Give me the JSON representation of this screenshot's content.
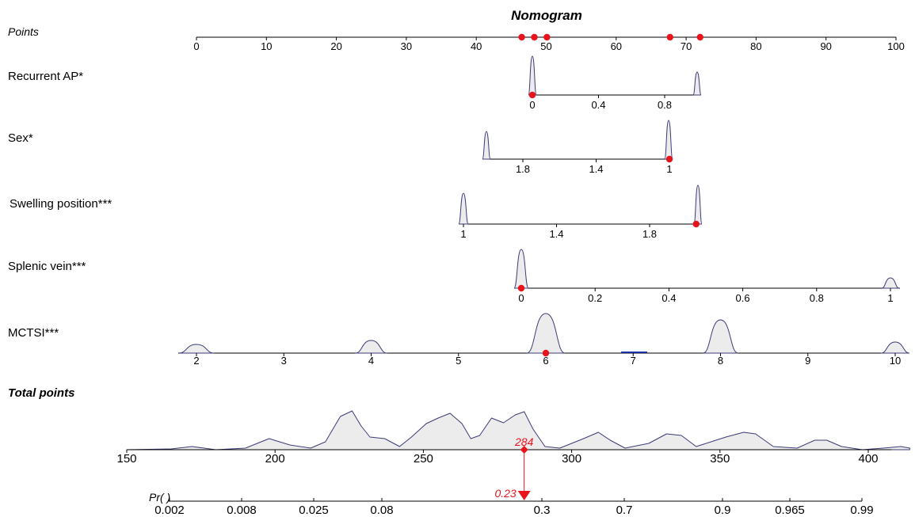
{
  "chart_data": {
    "type": "nomogram",
    "title": "Nomogram",
    "points_label": "Points",
    "points_scale": {
      "range": [
        0,
        100
      ],
      "ticks": [
        "0",
        "10",
        "20",
        "30",
        "40",
        "50",
        "60",
        "70",
        "80",
        "90",
        "100"
      ]
    },
    "points_markers": [
      46.5,
      48.3,
      50.1,
      67.7,
      72.0
    ],
    "variables": [
      {
        "label": "Recurrent AP*",
        "ticks": [
          "0",
          "0.4",
          "0.8"
        ],
        "tick_values": [
          0,
          0.4,
          0.8
        ],
        "selected": 0
      },
      {
        "label": "Sex*",
        "ticks": [
          "1.8",
          "1.4",
          "1"
        ],
        "tick_values": [
          1.8,
          1.4,
          1.0
        ],
        "selected": 1
      },
      {
        "label": "Swelling position***",
        "ticks": [
          "1",
          "1.4",
          "1.8"
        ],
        "tick_values": [
          1,
          1.4,
          1.8
        ],
        "selected": 2
      },
      {
        "label": "Splenic vein***",
        "ticks": [
          "0",
          "0.2",
          "0.4",
          "0.6",
          "0.8",
          "1"
        ],
        "tick_values": [
          0,
          0.2,
          0.4,
          0.6,
          0.8,
          1
        ],
        "selected": 0
      },
      {
        "label": "MCTSI***",
        "ticks": [
          "2",
          "3",
          "4",
          "5",
          "6",
          "7",
          "8",
          "9",
          "10"
        ],
        "tick_values": [
          2,
          3,
          4,
          5,
          6,
          7,
          8,
          9,
          10
        ],
        "selected": 6
      }
    ],
    "total_points": {
      "label": "Total points",
      "ticks": [
        "150",
        "200",
        "250",
        "300",
        "350",
        "400"
      ],
      "tick_values": [
        150,
        200,
        250,
        300,
        350,
        400
      ],
      "selected": 284,
      "selected_label": "284"
    },
    "probability": {
      "label": "Pr( )",
      "ticks": [
        "0.002",
        "0.008",
        "0.025",
        "0.08",
        "0.3",
        "0.7",
        "0.9",
        "0.965",
        "0.99"
      ],
      "selected": 0.23,
      "selected_label": "0.23"
    },
    "colors": {
      "axis": "#000000",
      "marker": "#e8141c",
      "density_fill": "#ececec",
      "density_stroke": "#3c3c78",
      "bar": "#1a2ea8"
    }
  }
}
